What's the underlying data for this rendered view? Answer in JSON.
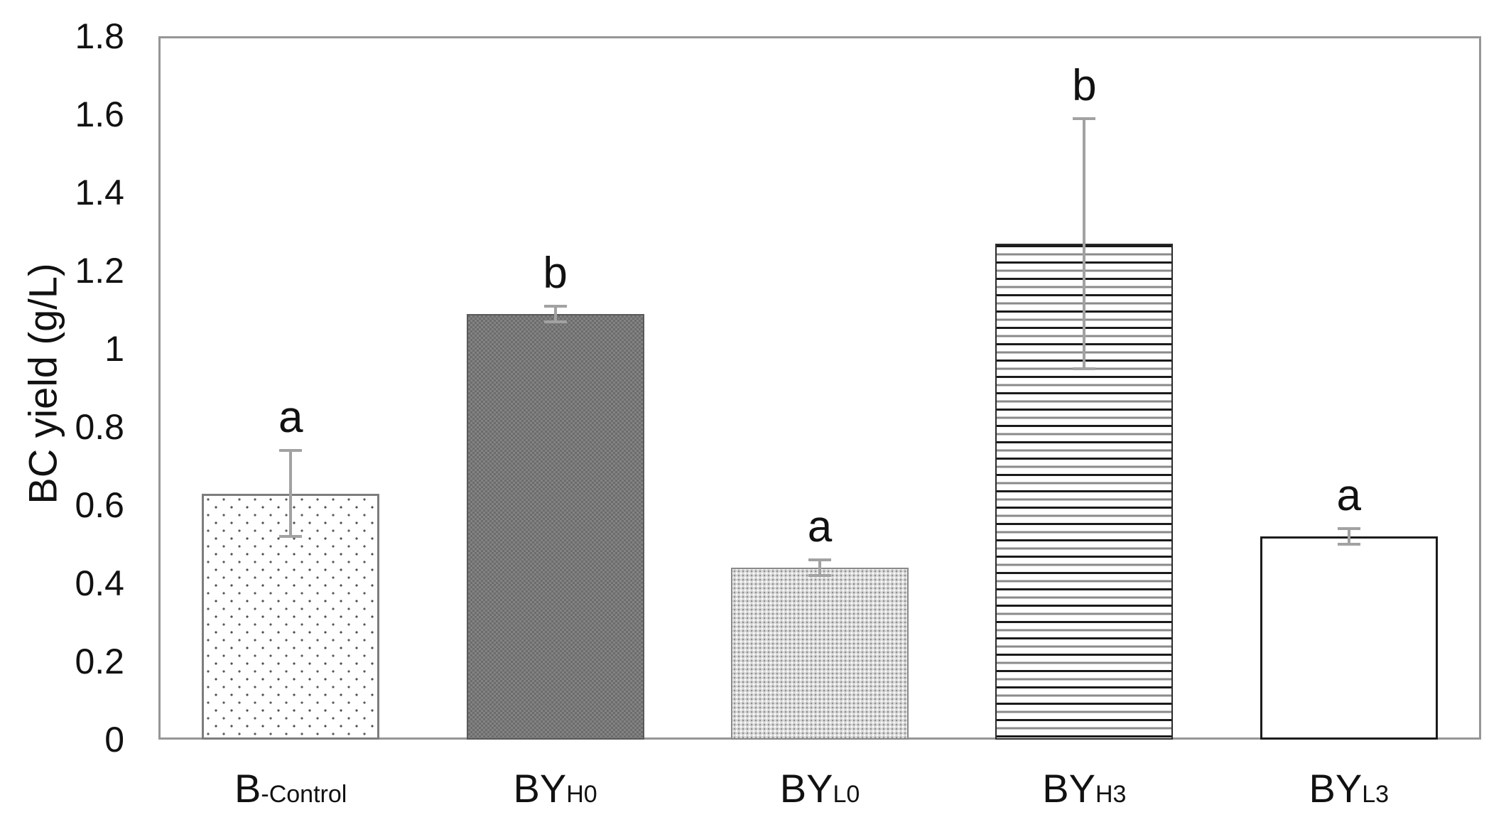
{
  "figure": {
    "background": "#ffffff"
  },
  "chart_data": {
    "type": "bar",
    "title": "",
    "xlabel": "",
    "ylabel": "BC yield (g/L)",
    "ylim": [
      0,
      1.8
    ],
    "ytick_step": 0.2,
    "ytick_labels": [
      "0",
      "0.2",
      "0.4",
      "0.6",
      "0.8",
      "1",
      "1.2",
      "1.4",
      "1.6",
      "1.8"
    ],
    "grid": false,
    "legend": "none",
    "categories": [
      {
        "main": "B",
        "sub": "-Control"
      },
      {
        "main": "BY",
        "sub": "H0"
      },
      {
        "main": "BY",
        "sub": "L0"
      },
      {
        "main": "BY",
        "sub": "H3"
      },
      {
        "main": "BY",
        "sub": "L3"
      }
    ],
    "values": [
      0.63,
      1.09,
      0.44,
      1.27,
      0.52
    ],
    "errors": [
      0.11,
      0.02,
      0.02,
      0.32,
      0.02
    ],
    "significance_letters": [
      "a",
      "b",
      "a",
      "b",
      "a"
    ],
    "bar_patterns": [
      "sparse-dots",
      "dark-weave",
      "light-weave",
      "horizontal-stripes",
      "plain"
    ],
    "colors": {
      "axis_frame": "#969696",
      "error_bar": "#a2a2a2",
      "text": "#111111"
    }
  }
}
